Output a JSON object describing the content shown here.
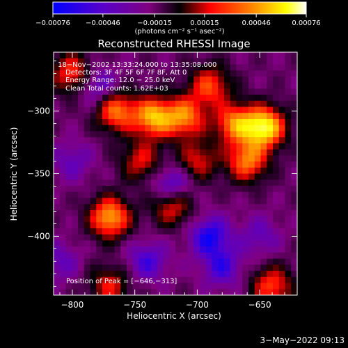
{
  "chart_data": {
    "type": "heatmap",
    "title": "Reconstructed RHESSI Image",
    "xlabel": "Heliocentric X (arcsec)",
    "ylabel": "Heliocentric Y (arcsec)",
    "xlim": [
      -815,
      -620
    ],
    "ylim": [
      -447,
      -253
    ],
    "x_ticks": [
      -800,
      -750,
      -700,
      -650
    ],
    "x_tick_labels": [
      "−800",
      "−750",
      "−700",
      "−650"
    ],
    "y_ticks": [
      -300,
      -350,
      -400
    ],
    "y_tick_labels": [
      "−300",
      "−350",
      "−400"
    ],
    "colorbar": {
      "min": -0.00076,
      "max": 0.00076,
      "ticks": [
        -0.00076,
        -0.00046,
        -0.00015,
        0.00015,
        0.00046,
        0.00076
      ],
      "tick_labels": [
        "−0.00076",
        "−0.00046",
        "−0.00015",
        "0.00015",
        "0.00046",
        "0.00076"
      ],
      "units_label": "(photons cm⁻² s⁻¹ asec⁻²)",
      "colormap": [
        "#0000ff",
        "#5a00c8",
        "#800080",
        "#000000",
        "#ff0000",
        "#ff8000",
        "#ffff00",
        "#ffffff"
      ]
    },
    "info_lines": [
      "18−Nov−2002 13:33:24.000 to 13:35:08.000",
      "Detectors: 3F 4F 5F 6F 7F 8F, Att 0",
      "Energy Range: 12.0 − 25.0 keV",
      "Clean     Total counts: 1.62E+03"
    ],
    "peak_label": "Position of Peak = [−646,−313]",
    "peak": [
      -646,
      -313
    ],
    "hot_spots": [
      {
        "x": -765,
        "y": -300,
        "value": 0.0005
      },
      {
        "x": -735,
        "y": -305,
        "value": 0.0006
      },
      {
        "x": -710,
        "y": -305,
        "value": 0.0005
      },
      {
        "x": -690,
        "y": -280,
        "value": 0.0004
      },
      {
        "x": -670,
        "y": -310,
        "value": 0.0005
      },
      {
        "x": -646,
        "y": -313,
        "value": 0.00076
      },
      {
        "x": -660,
        "y": -340,
        "value": 0.0005
      },
      {
        "x": -770,
        "y": -385,
        "value": 0.0006
      },
      {
        "x": -720,
        "y": -375,
        "value": 0.0004
      },
      {
        "x": -745,
        "y": -340,
        "value": 0.0003
      },
      {
        "x": -700,
        "y": -340,
        "value": 0.0003
      },
      {
        "x": -640,
        "y": -440,
        "value": 0.0004
      },
      {
        "x": -770,
        "y": -440,
        "value": 0.0003
      },
      {
        "x": -800,
        "y": -270,
        "value": 0.0004
      }
    ],
    "cold_spots": [
      {
        "x": -780,
        "y": -280,
        "value": -0.0004
      },
      {
        "x": -720,
        "y": -360,
        "value": -0.0005
      },
      {
        "x": -690,
        "y": -400,
        "value": -0.0005
      },
      {
        "x": -680,
        "y": -425,
        "value": -0.0004
      },
      {
        "x": -740,
        "y": -420,
        "value": -0.0004
      },
      {
        "x": -810,
        "y": -420,
        "value": -0.0003
      },
      {
        "x": -650,
        "y": -400,
        "value": -0.0003
      },
      {
        "x": -800,
        "y": -340,
        "value": -0.0003
      }
    ]
  },
  "timestamp": "3−May−2022 09:13"
}
